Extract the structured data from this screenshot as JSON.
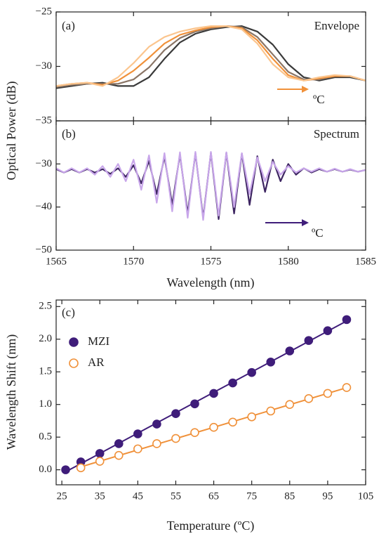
{
  "chart_data": [
    {
      "type": "line",
      "ylabel": "Optical Power (dB)",
      "panel_label": "(a)",
      "annotation": "Envelope",
      "arrow_label": "ºC",
      "xlim": [
        1565,
        1585
      ],
      "xticks": [
        1565,
        1570,
        1575,
        1580,
        1585
      ],
      "ylim": [
        -35,
        -25
      ],
      "yticks": [
        {
          "value": -35,
          "label": "−35"
        },
        {
          "value": -30,
          "label": "−30"
        },
        {
          "value": -25,
          "label": "−25"
        }
      ],
      "x": [
        1565,
        1566,
        1567,
        1568,
        1569,
        1570,
        1571,
        1572,
        1573,
        1574,
        1575,
        1576,
        1577,
        1578,
        1579,
        1580,
        1581,
        1582,
        1583,
        1584,
        1585
      ],
      "series": [
        {
          "color": "#3a3a3a",
          "values": [
            -32.0,
            -31.8,
            -31.6,
            -31.5,
            -31.8,
            -31.8,
            -31.0,
            -29.3,
            -27.8,
            -27.0,
            -26.6,
            -26.4,
            -26.3,
            -26.8,
            -28.0,
            -29.8,
            -31.0,
            -31.3,
            -31.0,
            -31.0,
            -31.3
          ]
        },
        {
          "color": "#8a7566",
          "values": [
            -31.9,
            -31.7,
            -31.6,
            -31.6,
            -31.6,
            -31.2,
            -30.1,
            -28.5,
            -27.4,
            -26.8,
            -26.5,
            -26.3,
            -26.4,
            -27.3,
            -28.9,
            -30.5,
            -31.2,
            -31.2,
            -30.9,
            -30.9,
            -31.3
          ]
        },
        {
          "color": "#f0913a",
          "values": [
            -31.8,
            -31.6,
            -31.5,
            -31.7,
            -31.3,
            -30.4,
            -29.2,
            -27.9,
            -27.1,
            -26.7,
            -26.4,
            -26.3,
            -26.5,
            -27.6,
            -29.3,
            -30.8,
            -31.3,
            -31.1,
            -30.9,
            -30.9,
            -31.3
          ]
        },
        {
          "color": "#fbc58e",
          "values": [
            -31.8,
            -31.6,
            -31.5,
            -31.8,
            -31.0,
            -29.7,
            -28.2,
            -27.3,
            -26.8,
            -26.5,
            -26.3,
            -26.3,
            -26.6,
            -27.9,
            -29.8,
            -31.0,
            -31.3,
            -31.0,
            -30.8,
            -30.9,
            -31.3
          ]
        }
      ]
    },
    {
      "type": "line",
      "xlabel": "Wavelength (nm)",
      "panel_label": "(b)",
      "annotation": "Spectrum",
      "arrow_label": "ºC",
      "xlim": [
        1565,
        1585
      ],
      "xticks": [
        1565,
        1570,
        1575,
        1580,
        1585
      ],
      "ylim": [
        -50,
        -20
      ],
      "yticks": [
        {
          "value": -50,
          "label": "−50"
        },
        {
          "value": -40,
          "label": "−40"
        },
        {
          "value": -30,
          "label": "−30"
        }
      ],
      "series": [
        {
          "color": "#3d2561",
          "x": [
            1565,
            1565.5,
            1566,
            1566.5,
            1567,
            1567.5,
            1568,
            1568.5,
            1569,
            1569.5,
            1570,
            1570.5,
            1571,
            1571.5,
            1572,
            1572.5,
            1573,
            1573.5,
            1574,
            1574.5,
            1575,
            1575.5,
            1576,
            1576.5,
            1577,
            1577.5,
            1578,
            1578.5,
            1579,
            1579.5,
            1580,
            1580.5,
            1581,
            1581.5,
            1582,
            1582.5,
            1583,
            1583.5,
            1584,
            1584.5,
            1585
          ],
          "values": [
            -31.2,
            -32,
            -31.2,
            -32,
            -31.2,
            -32,
            -31.2,
            -32.3,
            -31,
            -33,
            -30.3,
            -34.5,
            -29.3,
            -37,
            -28.3,
            -39.5,
            -27.8,
            -41.5,
            -27.5,
            -42.5,
            -27.4,
            -42.8,
            -27.4,
            -41.5,
            -27.6,
            -39.5,
            -28.2,
            -36.5,
            -29,
            -34,
            -30,
            -32.5,
            -31,
            -32,
            -31.2,
            -31.8,
            -31.2,
            -31.8,
            -31.3,
            -31.8,
            -31.4
          ]
        },
        {
          "color": "#c8a6ea",
          "x": [
            1565,
            1565.5,
            1566,
            1566.5,
            1567,
            1567.5,
            1568,
            1568.5,
            1569,
            1569.5,
            1570,
            1570.5,
            1571,
            1571.5,
            1572,
            1572.5,
            1573,
            1573.5,
            1574,
            1574.5,
            1575,
            1575.5,
            1576,
            1576.5,
            1577,
            1577.5,
            1578,
            1578.5,
            1579,
            1579.5,
            1580,
            1580.5,
            1581,
            1581.5,
            1582,
            1582.5,
            1583,
            1583.5,
            1584,
            1584.5,
            1585
          ],
          "values": [
            -31,
            -32,
            -31,
            -32,
            -31,
            -32.5,
            -30.5,
            -33,
            -30,
            -34,
            -29,
            -36,
            -28,
            -39,
            -27.5,
            -41,
            -27.3,
            -42.5,
            -27.2,
            -43,
            -27.2,
            -42,
            -27.3,
            -40,
            -27.5,
            -37,
            -28.5,
            -34,
            -29.5,
            -32.5,
            -30.5,
            -32,
            -31,
            -31.8,
            -31,
            -31.8,
            -31.1,
            -31.8,
            -31.2,
            -31.8,
            -31.4
          ]
        }
      ]
    },
    {
      "type": "scatter",
      "xlabel": "Temperature (ºC)",
      "ylabel": "Wavelength Shift (nm)",
      "panel_label": "(c)",
      "legend": "upper left",
      "fit": true,
      "xlim": [
        23.5,
        105
      ],
      "xticks": [
        25,
        35,
        45,
        55,
        65,
        75,
        85,
        95,
        105
      ],
      "ylim": [
        -0.23,
        2.6
      ],
      "yticks": [
        {
          "value": 0,
          "label": "0.0"
        },
        0.5,
        {
          "value": 1,
          "label": "1.0"
        },
        1.5,
        {
          "value": 2,
          "label": "2.0"
        },
        2.5
      ],
      "series": [
        {
          "name": "MZI",
          "color": "#3f1d7a",
          "filled": true,
          "x": [
            26,
            30,
            35,
            40,
            45,
            50,
            55,
            60,
            65,
            70,
            75,
            80,
            85,
            90,
            95,
            100
          ],
          "values": [
            0,
            0.12,
            0.25,
            0.4,
            0.55,
            0.7,
            0.86,
            1.01,
            1.17,
            1.33,
            1.49,
            1.65,
            1.82,
            1.98,
            2.13,
            2.3
          ]
        },
        {
          "name": "AR",
          "color": "#f0913a",
          "filled": false,
          "x": [
            30,
            35,
            40,
            45,
            50,
            55,
            60,
            65,
            70,
            75,
            80,
            85,
            90,
            95,
            100
          ],
          "values": [
            0.03,
            0.13,
            0.22,
            0.32,
            0.4,
            0.48,
            0.57,
            0.65,
            0.73,
            0.81,
            0.9,
            1.0,
            1.09,
            1.17,
            1.26
          ]
        }
      ]
    }
  ]
}
